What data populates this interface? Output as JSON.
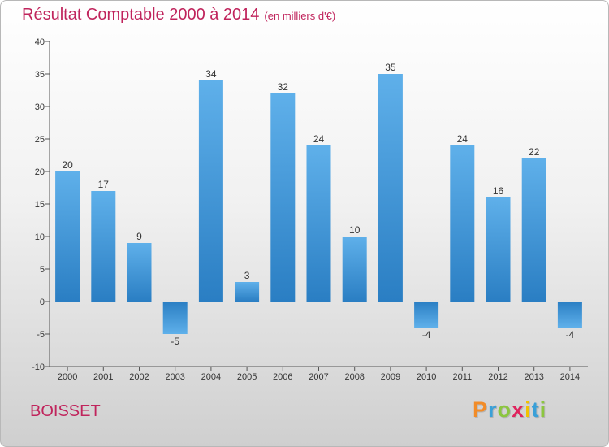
{
  "title": "Résultat Comptable 2000 à 2014",
  "subtitle": "(en milliers d'€)",
  "commune": "BOISSET",
  "logo": {
    "letters": [
      "P",
      "r",
      "o",
      "x",
      "i",
      "t",
      "i"
    ],
    "colors": [
      "#f28c28",
      "#3aa0d8",
      "#8cc63f",
      "#e0245e",
      "#f2c200",
      "#3aa0d8",
      "#8cc63f"
    ]
  },
  "colors": {
    "bar_light": "#5fb0ea",
    "bar_dark": "#2a7ec3",
    "accent": "#c0245c",
    "axis": "#555555"
  },
  "chart_data": {
    "type": "bar",
    "title": "Résultat Comptable 2000 à 2014",
    "ylabel": "en milliers d'€",
    "categories": [
      "2000",
      "2001",
      "2002",
      "2003",
      "2004",
      "2005",
      "2006",
      "2007",
      "2008",
      "2009",
      "2010",
      "2011",
      "2012",
      "2013",
      "2014"
    ],
    "values": [
      20,
      17,
      9,
      -5,
      34,
      3,
      32,
      24,
      10,
      35,
      -4,
      24,
      16,
      22,
      -4
    ],
    "ylim": [
      -10,
      40
    ],
    "yticks": [
      -10,
      -5,
      0,
      5,
      10,
      15,
      20,
      25,
      30,
      35,
      40
    ],
    "grid": false
  }
}
